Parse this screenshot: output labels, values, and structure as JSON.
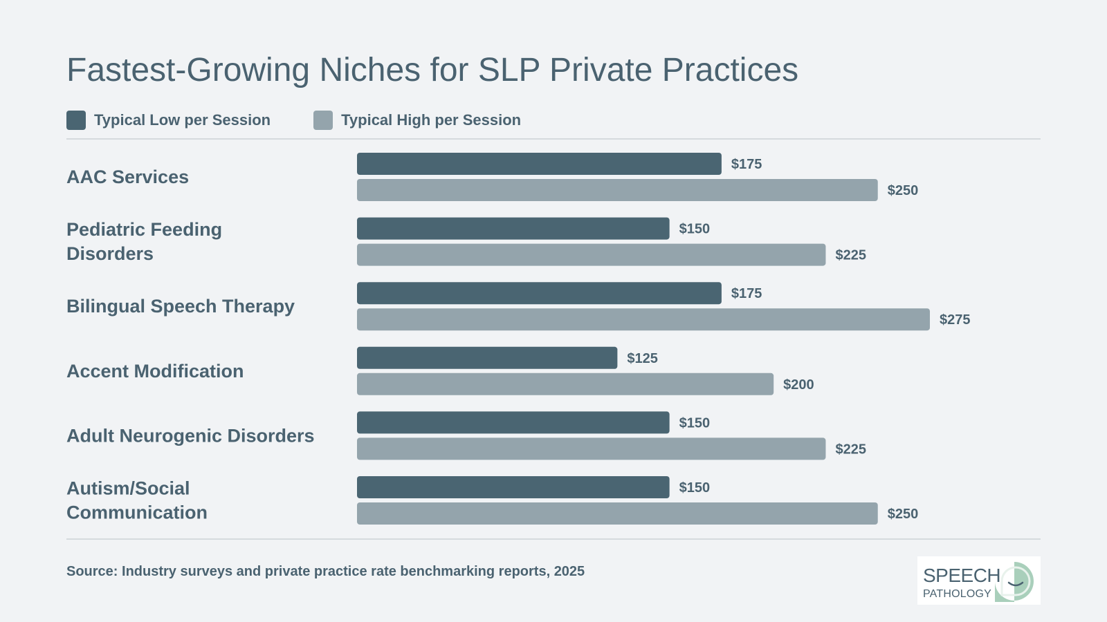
{
  "title": "Fastest-Growing Niches for SLP Private Practices",
  "legend": {
    "low_label": "Typical Low per Session",
    "high_label": "Typical High per Session"
  },
  "colors": {
    "low": "#4a6572",
    "high": "#94a4ac",
    "text": "#4a6270",
    "logo_green": "#a9cfbb"
  },
  "chart_data": {
    "type": "bar",
    "orientation": "horizontal",
    "categories": [
      [
        "AAC Services"
      ],
      [
        "Pediatric Feeding",
        "Disorders"
      ],
      [
        "Bilingual Speech Therapy"
      ],
      [
        "Accent Modification"
      ],
      [
        "Adult Neurogenic Disorders"
      ],
      [
        "Autism/Social",
        "Communication"
      ]
    ],
    "series": [
      {
        "name": "Typical Low per Session",
        "values": [
          175,
          150,
          175,
          125,
          150,
          150
        ],
        "labels": [
          "$175",
          "$150",
          "$175",
          "$125",
          "$150",
          "$150"
        ]
      },
      {
        "name": "Typical High per Session",
        "values": [
          250,
          225,
          275,
          200,
          225,
          250
        ],
        "labels": [
          "$250",
          "$225",
          "$275",
          "$200",
          "$225",
          "$250"
        ]
      }
    ],
    "xlim": [
      0,
      275
    ],
    "grid": false,
    "legend_position": "top-left"
  },
  "source": "Source: Industry surveys and private practice rate benchmarking reports, 2025",
  "logo": {
    "line1": "SPEECH",
    "line2": "PATHOLOGY",
    "icon": "speech-bubble-smile-icon"
  }
}
